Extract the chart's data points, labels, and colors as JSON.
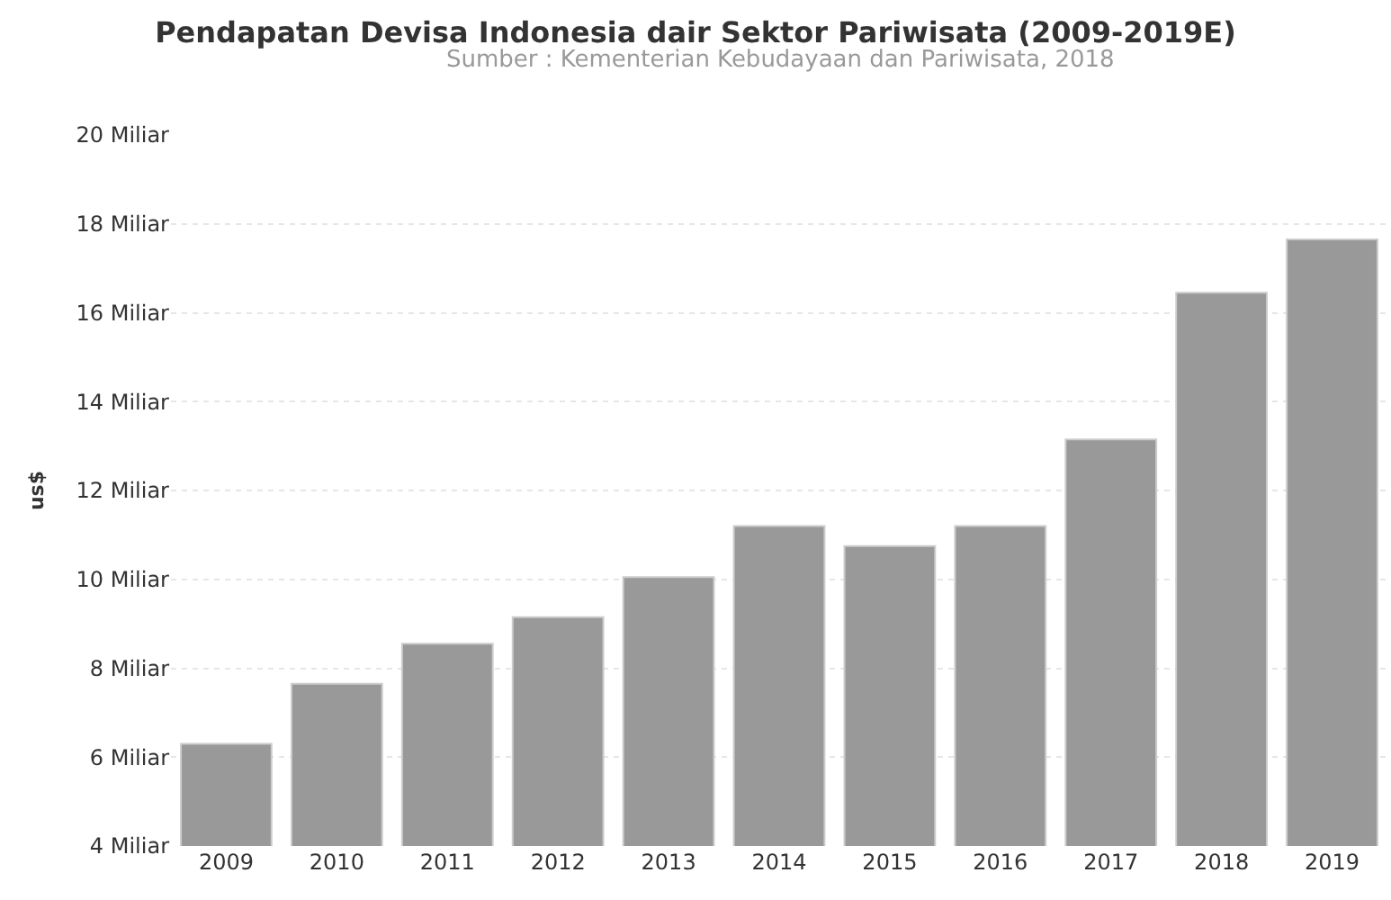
{
  "chart_data": {
    "type": "bar",
    "title": "Pendapatan Devisa Indonesia dair Sektor Pariwisata (2009-2019E)",
    "subtitle": "Sumber : Kementerian Kebudayaan dan Pariwisata, 2018",
    "ylabel": "us$",
    "categories": [
      "2009",
      "2010",
      "2011",
      "2012",
      "2013",
      "2014",
      "2015",
      "2016",
      "2017",
      "2018",
      "2019"
    ],
    "values": [
      6.3,
      7.65,
      8.55,
      9.15,
      10.05,
      11.2,
      10.75,
      11.2,
      13.15,
      16.45,
      17.65
    ],
    "color": "#999999",
    "ylim": [
      4,
      20
    ],
    "yticks": [
      {
        "value": 4,
        "label": "4 Miliar"
      },
      {
        "value": 6,
        "label": "6 Miliar"
      },
      {
        "value": 8,
        "label": "8 Miliar"
      },
      {
        "value": 10,
        "label": "10 Miliar"
      },
      {
        "value": 12,
        "label": "12 Miliar"
      },
      {
        "value": 14,
        "label": "14 Miliar"
      },
      {
        "value": 16,
        "label": "16 Miliar"
      },
      {
        "value": 18,
        "label": "18 Miliar"
      },
      {
        "value": 20,
        "label": "20 Miliar"
      }
    ],
    "grid": "y"
  }
}
